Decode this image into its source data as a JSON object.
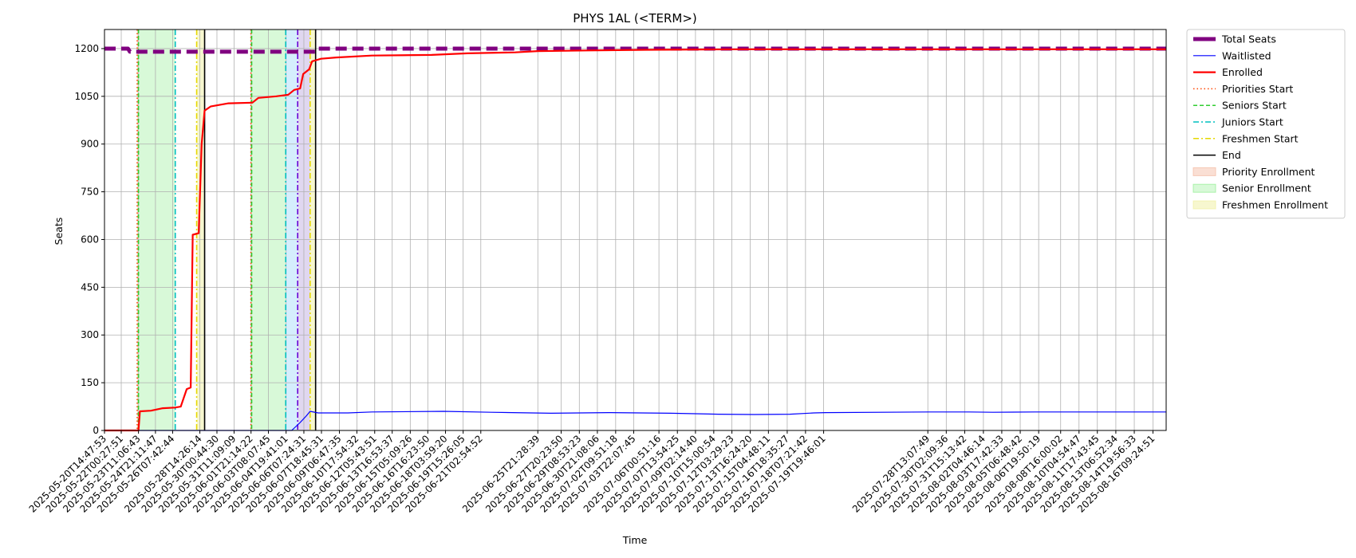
{
  "chart_data": {
    "type": "line",
    "title": "PHYS 1AL (<TERM>)",
    "xlabel": "Time",
    "ylabel": "Seats",
    "x_range": [
      "2025-05-20T14:47:53",
      "2025-08-17T12:00:00"
    ],
    "ylim": [
      0,
      1260
    ],
    "grid": true,
    "legend_position": "outside-top-right",
    "y_ticks": [
      0,
      150,
      300,
      450,
      600,
      750,
      900,
      1050,
      1200
    ],
    "x_tick_labels": [
      "2025-05-20T14:47:53",
      "2025-05-22T00:27:51",
      "2025-05-23T11:06:43",
      "2025-05-24T21:11:47",
      "2025-05-26T07:42:44",
      "2025-05-28T14:26:14",
      "2025-05-30T00:44:30",
      "2025-05-31T11:09:09",
      "2025-06-01T21:14:22",
      "2025-06-03T08:07:45",
      "2025-06-04T19:41:01",
      "2025-06-06T07:24:31",
      "2025-06-07T18:45:31",
      "2025-06-09T06:47:35",
      "2025-06-10T17:54:32",
      "2025-06-12T05:43:51",
      "2025-06-13T16:53:37",
      "2025-06-15T05:09:26",
      "2025-06-16T16:23:50",
      "2025-06-18T03:59:20",
      "2025-06-19T15:26:05",
      "2025-06-21T02:54:52",
      "2025-06-25T21:28:39",
      "2025-06-27T20:23:50",
      "2025-06-29T08:53:23",
      "2025-06-30T21:08:06",
      "2025-07-02T09:51:18",
      "2025-07-03T22:07:45",
      "2025-07-06T00:51:16",
      "2025-07-07T13:54:25",
      "2025-07-09T02:14:40",
      "2025-07-10T15:00:54",
      "2025-07-12T03:29:23",
      "2025-07-13T16:24:20",
      "2025-07-15T04:48:11",
      "2025-07-16T18:35:27",
      "2025-07-18T07:21:42",
      "2025-07-19T19:46:01",
      "2025-07-28T13:07:49",
      "2025-07-30T02:09:36",
      "2025-07-31T15:13:42",
      "2025-08-02T04:46:14",
      "2025-08-03T17:42:33",
      "2025-08-05T06:48:42",
      "2025-08-06T19:50:19",
      "2025-08-08T16:00:02",
      "2025-08-10T04:54:47",
      "2025-08-11T17:43:45",
      "2025-08-13T06:52:34",
      "2025-08-14T19:56:33",
      "2025-08-16T09:24:51"
    ],
    "series": [
      {
        "name": "Total Seats",
        "color": "#800080",
        "style": "dashed-thick",
        "points": [
          [
            "2025-05-20T14:47:53",
            1200
          ],
          [
            "2025-05-22T14:00:00",
            1200
          ],
          [
            "2025-05-22T18:00:00",
            1190
          ],
          [
            "2025-06-07T06:00:00",
            1190
          ],
          [
            "2025-06-07T10:00:00",
            1200
          ],
          [
            "2025-08-17T12:00:00",
            1200
          ]
        ]
      },
      {
        "name": "Waitlisted",
        "color": "#0000ff",
        "style": "solid",
        "points": [
          [
            "2025-05-20T14:47:53",
            0
          ],
          [
            "2025-06-05T07:00:00",
            0
          ],
          [
            "2025-06-06T00:00:00",
            25
          ],
          [
            "2025-06-06T12:00:00",
            45
          ],
          [
            "2025-06-06T20:00:00",
            60
          ],
          [
            "2025-06-07T12:00:00",
            55
          ],
          [
            "2025-06-10T00:00:00",
            55
          ],
          [
            "2025-06-12T00:00:00",
            58
          ],
          [
            "2025-06-18T00:00:00",
            60
          ],
          [
            "2025-06-22T00:00:00",
            57
          ],
          [
            "2025-06-27T00:00:00",
            54
          ],
          [
            "2025-07-02T00:00:00",
            56
          ],
          [
            "2025-07-07T00:00:00",
            54
          ],
          [
            "2025-07-11T00:00:00",
            51
          ],
          [
            "2025-07-14T00:00:00",
            50
          ],
          [
            "2025-07-17T00:00:00",
            51
          ],
          [
            "2025-07-19T00:00:00",
            55
          ],
          [
            "2025-07-20T00:00:00",
            56
          ],
          [
            "2025-07-28T14:00:00",
            58
          ],
          [
            "2025-08-01T00:00:00",
            58
          ],
          [
            "2025-08-03T00:00:00",
            57
          ],
          [
            "2025-08-06T12:00:00",
            58
          ],
          [
            "2025-08-17T12:00:00",
            58
          ]
        ]
      },
      {
        "name": "Enrolled",
        "color": "#ff0000",
        "style": "solid-thick",
        "points": [
          [
            "2025-05-20T14:47:53",
            0
          ],
          [
            "2025-05-23T11:00:00",
            0
          ],
          [
            "2025-05-23T14:00:00",
            60
          ],
          [
            "2025-05-24T12:00:00",
            62
          ],
          [
            "2025-05-25T12:00:00",
            70
          ],
          [
            "2025-05-26T12:00:00",
            72
          ],
          [
            "2025-05-27T00:00:00",
            75
          ],
          [
            "2025-05-27T12:00:00",
            130
          ],
          [
            "2025-05-27T20:00:00",
            135
          ],
          [
            "2025-05-28T00:00:00",
            615
          ],
          [
            "2025-05-28T12:00:00",
            620
          ],
          [
            "2025-05-28T18:00:00",
            900
          ],
          [
            "2025-05-29T00:00:00",
            1005
          ],
          [
            "2025-05-29T12:00:00",
            1018
          ],
          [
            "2025-05-31T00:00:00",
            1028
          ],
          [
            "2025-06-02T00:00:00",
            1030
          ],
          [
            "2025-06-02T12:00:00",
            1045
          ],
          [
            "2025-06-04T00:00:00",
            1050
          ],
          [
            "2025-06-05T00:00:00",
            1055
          ],
          [
            "2025-06-05T12:00:00",
            1070
          ],
          [
            "2025-06-06T00:00:00",
            1075
          ],
          [
            "2025-06-06T06:00:00",
            1120
          ],
          [
            "2025-06-06T18:00:00",
            1135
          ],
          [
            "2025-06-07T00:00:00",
            1160
          ],
          [
            "2025-06-07T18:00:00",
            1168
          ],
          [
            "2025-06-09T00:00:00",
            1172
          ],
          [
            "2025-06-12T00:00:00",
            1178
          ],
          [
            "2025-06-17T00:00:00",
            1180
          ],
          [
            "2025-06-20T00:00:00",
            1185
          ],
          [
            "2025-06-24T00:00:00",
            1188
          ],
          [
            "2025-06-25T21:00:00",
            1192
          ],
          [
            "2025-06-30T00:00:00",
            1194
          ],
          [
            "2025-07-05T00:00:00",
            1196
          ],
          [
            "2025-07-13T00:00:00",
            1198
          ],
          [
            "2025-08-17T12:00:00",
            1198
          ]
        ]
      }
    ],
    "vertical_lines": [
      {
        "name": "Priorities Start",
        "color": "#ff4500",
        "style": "dotted",
        "x": [
          "2025-05-23T08:30:00",
          "2025-06-01T21:00:00"
        ]
      },
      {
        "name": "Seniors Start",
        "color": "#32cd32",
        "style": "dashed",
        "x": [
          "2025-05-23T11:00:00",
          "2025-06-01T22:30:00"
        ]
      },
      {
        "name": "Juniors Start",
        "color": "#00bfbf",
        "style": "dashdot",
        "x": [
          "2025-05-26T13:00:00",
          "2025-06-04T19:00:00"
        ]
      },
      {
        "name": "Freshmen Start",
        "color": "#e6d800",
        "style": "dashdot",
        "x": [
          "2025-05-28T08:00:00",
          "2025-06-06T20:00:00"
        ]
      },
      {
        "name": "End",
        "color": "#000000",
        "style": "solid",
        "x": [
          "2025-05-29T00:00:00",
          "2025-06-07T07:00:00"
        ]
      }
    ],
    "extra_vertical_lines": [
      {
        "color": "#6a00d5",
        "style": "dashdot",
        "x": "2025-06-05T19:00:00"
      }
    ],
    "shaded_regions": [
      {
        "name": "Priority Enrollment",
        "color": "#f4b8a0",
        "opacity": 0.45,
        "ranges": [
          [
            "2025-05-23T08:30:00",
            "2025-05-23T11:00:00"
          ],
          [
            "2025-06-01T21:00:00",
            "2025-06-01T22:30:00"
          ]
        ]
      },
      {
        "name": "Senior Enrollment",
        "color": "#90ee90",
        "opacity": 0.35,
        "ranges": [
          [
            "2025-05-23T11:00:00",
            "2025-05-26T13:00:00"
          ],
          [
            "2025-06-01T22:30:00",
            "2025-06-04T19:00:00"
          ]
        ]
      },
      {
        "name": "Freshmen Enrollment",
        "color": "#f0f0a0",
        "opacity": 0.5,
        "ranges": [
          [
            "2025-05-28T08:00:00",
            "2025-05-29T00:00:00"
          ],
          [
            "2025-06-06T20:00:00",
            "2025-06-07T07:00:00"
          ]
        ]
      }
    ],
    "extra_shaded_regions": [
      {
        "color": "#87cefa",
        "opacity": 0.35,
        "range": [
          "2025-06-04T19:00:00",
          "2025-06-05T19:00:00"
        ]
      },
      {
        "color": "#b19cd9",
        "opacity": 0.4,
        "range": [
          "2025-06-05T19:00:00",
          "2025-06-06T20:00:00"
        ]
      }
    ],
    "legend": [
      {
        "label": "Total Seats",
        "kind": "line",
        "color": "#800080",
        "dash": "",
        "width": 5
      },
      {
        "label": "Waitlisted",
        "kind": "line",
        "color": "#0000ff",
        "dash": "",
        "width": 1.2
      },
      {
        "label": "Enrolled",
        "kind": "line",
        "color": "#ff0000",
        "dash": "",
        "width": 2.2
      },
      {
        "label": "Priorities Start",
        "kind": "line",
        "color": "#ff4500",
        "dash": "1.5,3",
        "width": 1.5
      },
      {
        "label": "Seniors Start",
        "kind": "line",
        "color": "#32cd32",
        "dash": "5,3",
        "width": 1.5
      },
      {
        "label": "Juniors Start",
        "kind": "line",
        "color": "#00bfbf",
        "dash": "7,3,2,3",
        "width": 1.5
      },
      {
        "label": "Freshmen Start",
        "kind": "line",
        "color": "#e6d800",
        "dash": "7,3,2,3",
        "width": 1.5
      },
      {
        "label": "End",
        "kind": "line",
        "color": "#000000",
        "dash": "",
        "width": 1.5
      },
      {
        "label": "Priority Enrollment",
        "kind": "patch",
        "color": "#f4b8a0",
        "opacity": 0.45
      },
      {
        "label": "Senior Enrollment",
        "kind": "patch",
        "color": "#90ee90",
        "opacity": 0.35
      },
      {
        "label": "Freshmen Enrollment",
        "kind": "patch",
        "color": "#f0f0a0",
        "opacity": 0.5
      }
    ]
  }
}
